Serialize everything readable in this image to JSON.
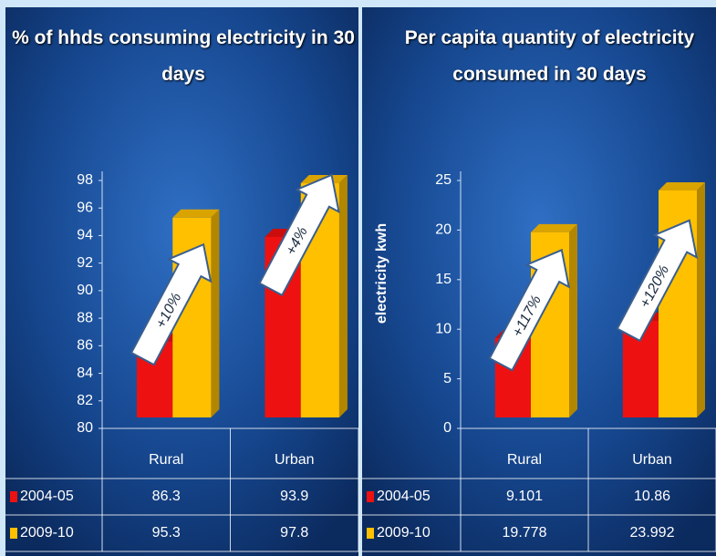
{
  "chart_data": [
    {
      "type": "bar",
      "title": "% of hhds consuming electricity in 30 days",
      "categories": [
        "Rural",
        "Urban"
      ],
      "series": [
        {
          "name": "2004-05",
          "color": "#ee1111",
          "values": [
            86.3,
            93.9
          ]
        },
        {
          "name": "2009-10",
          "color": "#ffc000",
          "values": [
            95.3,
            97.8
          ]
        }
      ],
      "ylim": [
        80,
        98
      ],
      "yticks": [
        80,
        82,
        84,
        86,
        88,
        90,
        92,
        94,
        96,
        98
      ],
      "annotations": [
        "+10%",
        "+4%"
      ],
      "grid": false
    },
    {
      "type": "bar",
      "title": "Per capita quantity of electricity consumed in 30 days",
      "ylabel": "electricity kwh",
      "categories": [
        "Rural",
        "Urban"
      ],
      "series": [
        {
          "name": "2004-05",
          "color": "#ee1111",
          "values": [
            9.101,
            10.86
          ]
        },
        {
          "name": "2009-10",
          "color": "#ffc000",
          "values": [
            19.778,
            23.992
          ]
        }
      ],
      "ylim": [
        0,
        25
      ],
      "yticks": [
        0,
        5,
        10,
        15,
        20,
        25
      ],
      "annotations": [
        "+117%",
        "+120%"
      ],
      "grid": false
    }
  ]
}
